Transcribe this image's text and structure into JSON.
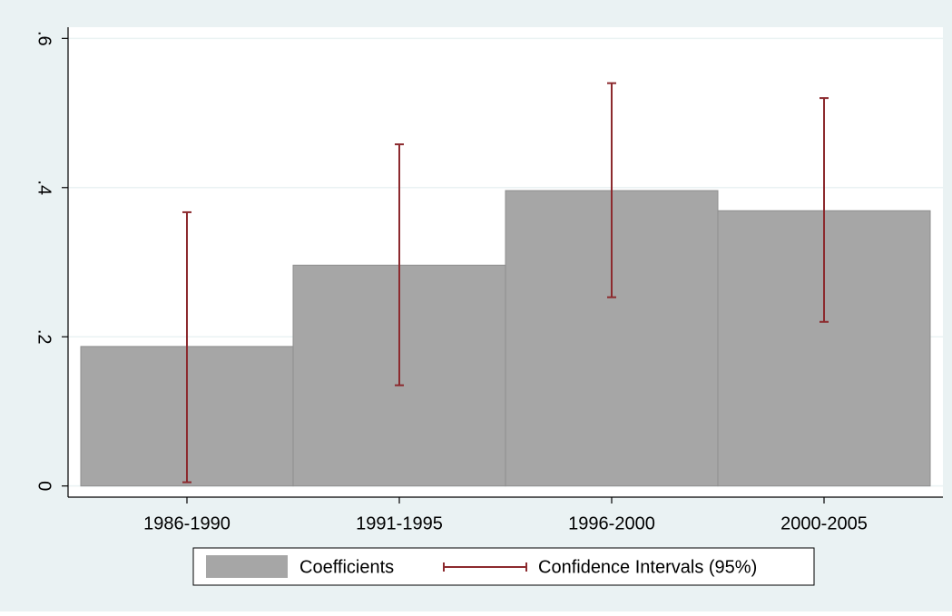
{
  "chart_data": {
    "type": "bar",
    "categories": [
      "1986-1990",
      "1991-1995",
      "1996-2000",
      "2000-2005"
    ],
    "series": [
      {
        "name": "Coefficients",
        "color": "#a6a6a6",
        "values": [
          0.187,
          0.296,
          0.396,
          0.369
        ]
      }
    ],
    "error_bars": {
      "name": "Confidence Intervals (95%)",
      "color": "#8c2a2e",
      "lower": [
        0.005,
        0.135,
        0.253,
        0.22
      ],
      "upper": [
        0.367,
        0.458,
        0.54,
        0.52
      ]
    },
    "ylim": [
      -0.015,
      0.615
    ],
    "yticks": [
      0,
      {
        "value": 0.2,
        "label": ".2"
      },
      {
        "value": 0.4,
        "label": ".4"
      },
      {
        "value": 0.6,
        "label": ".6"
      }
    ],
    "grid": true
  }
}
